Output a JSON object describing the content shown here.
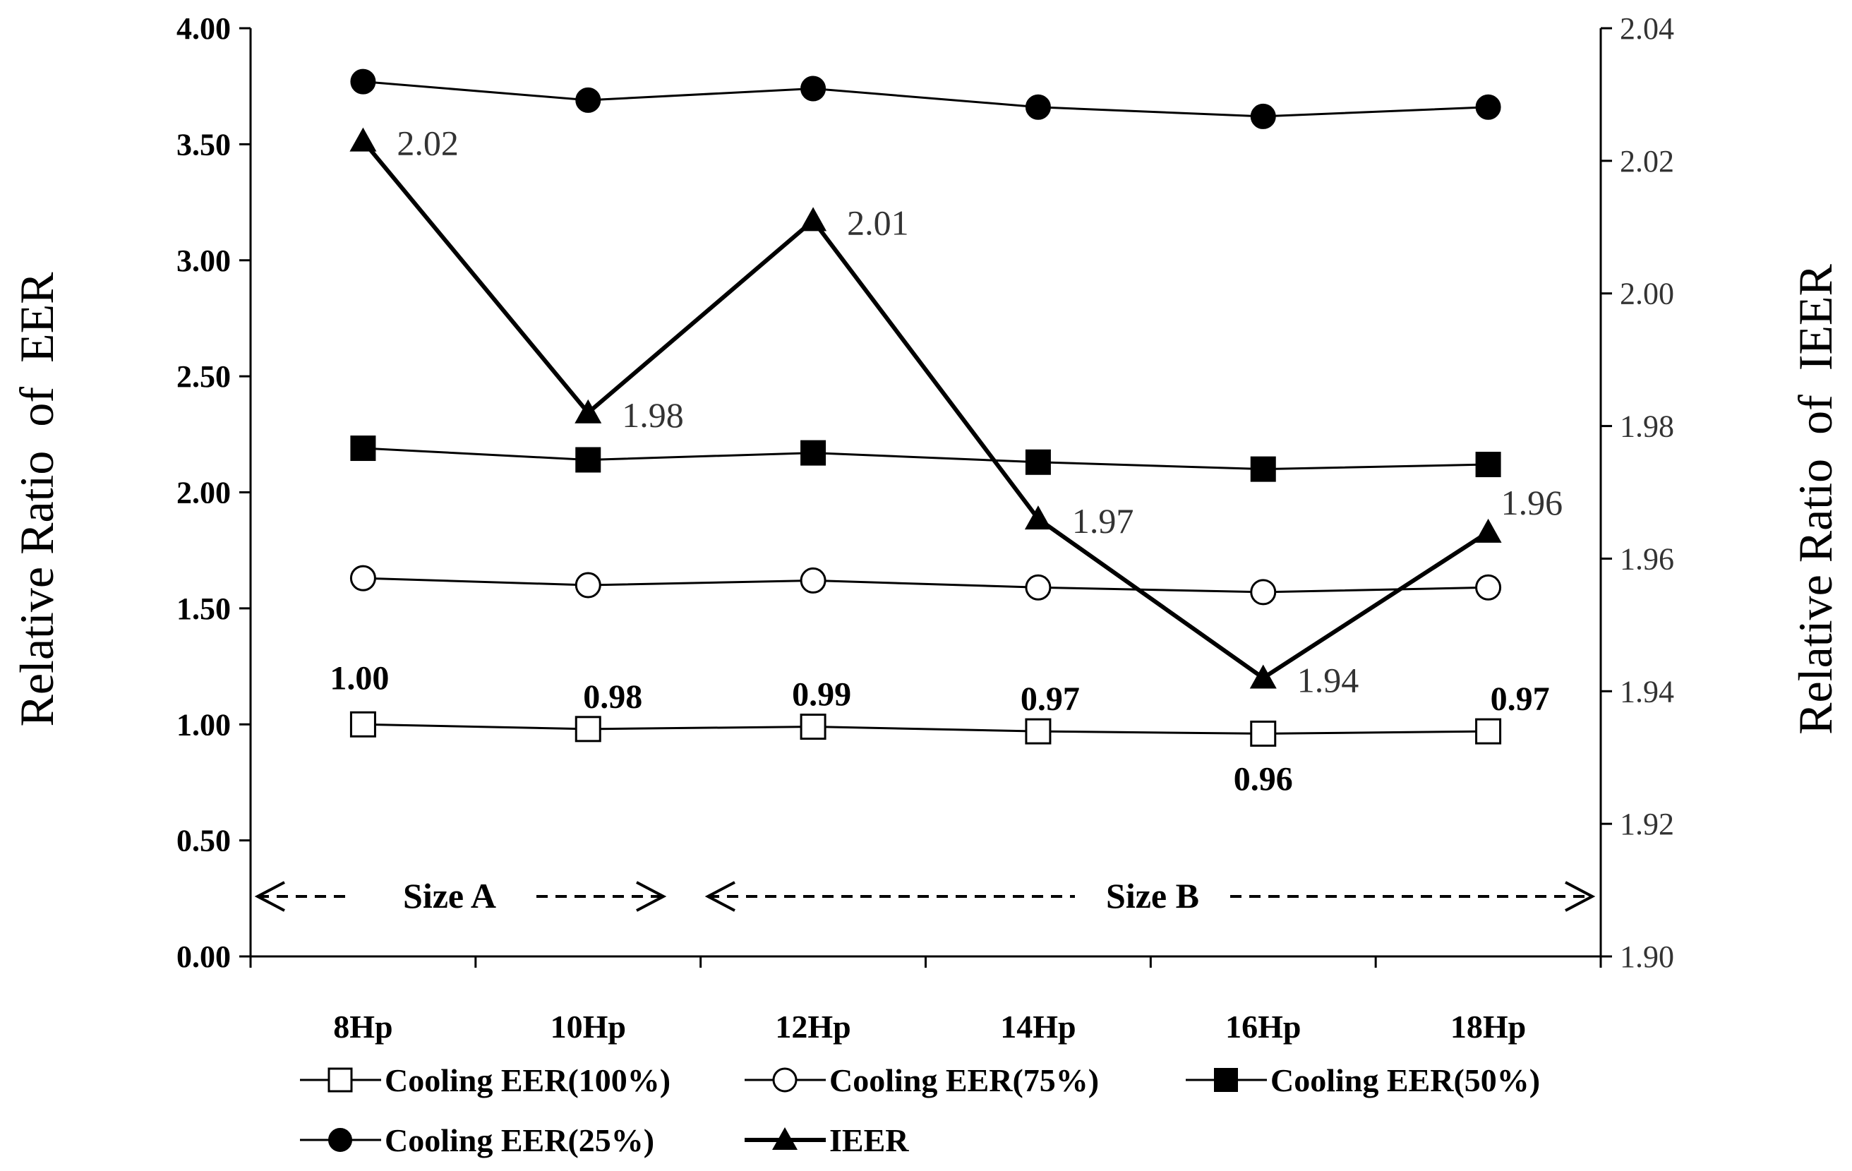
{
  "chart_data": {
    "type": "line",
    "categories": [
      "8Hp",
      "10Hp",
      "12Hp",
      "14Hp",
      "16Hp",
      "18Hp"
    ],
    "ylabel": "Relative Ratio  of  EER",
    "ylabel_right": "Relative Ratio  of  IEER",
    "ylim": [
      0,
      4
    ],
    "ylim_right": [
      1.9,
      2.04
    ],
    "yticks_left": [
      "0.00",
      "0.50",
      "1.00",
      "1.50",
      "2.00",
      "2.50",
      "3.00",
      "3.50",
      "4.00"
    ],
    "yticks_right": [
      "1.90",
      "1.92",
      "1.94",
      "1.96",
      "1.98",
      "2.00",
      "2.02",
      "2.04"
    ],
    "grid": false,
    "legend_position": "bottom",
    "series": [
      {
        "name": "Cooling EER(100%)",
        "axis": "left",
        "marker": "square-open",
        "values": [
          1.0,
          0.98,
          0.99,
          0.97,
          0.96,
          0.97
        ],
        "data_labels": [
          "1.00",
          "0.98",
          "0.99",
          "0.97",
          "0.96",
          "0.97"
        ]
      },
      {
        "name": "Cooling EER(75%)",
        "axis": "left",
        "marker": "circle-open",
        "values": [
          1.63,
          1.6,
          1.62,
          1.59,
          1.57,
          1.59
        ]
      },
      {
        "name": "Cooling EER(50%)",
        "axis": "left",
        "marker": "square-filled",
        "values": [
          2.19,
          2.14,
          2.17,
          2.13,
          2.1,
          2.12
        ]
      },
      {
        "name": "Cooling EER(25%)",
        "axis": "left",
        "marker": "circle-filled",
        "values": [
          3.77,
          3.69,
          3.74,
          3.66,
          3.62,
          3.66
        ]
      },
      {
        "name": "IEER",
        "axis": "right",
        "marker": "triangle-filled",
        "values": [
          2.023,
          1.982,
          2.011,
          1.966,
          1.942,
          1.964
        ],
        "data_labels": [
          "2.02",
          "1.98",
          "2.01",
          "1.97",
          "1.94",
          "1.96"
        ]
      }
    ],
    "annotations": [
      {
        "text": "Size A",
        "from": "8Hp",
        "to": "10Hp"
      },
      {
        "text": "Size B",
        "from": "12Hp",
        "to": "18Hp"
      }
    ]
  }
}
